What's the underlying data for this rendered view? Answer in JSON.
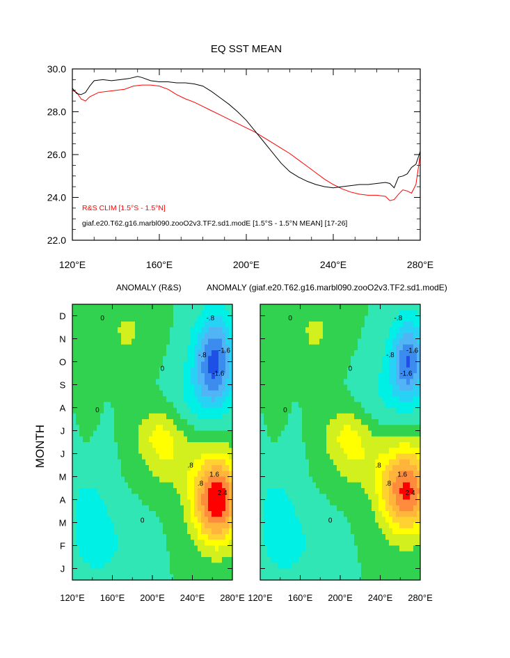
{
  "colors": {
    "obs_line": "#ff0000",
    "model_line": "#000000",
    "palette": [
      "#0010c8",
      "#1e50e6",
      "#3c8cf0",
      "#50b4f5",
      "#28d2f5",
      "#00f0e6",
      "#30e6b4",
      "#30d250",
      "#7ddc28",
      "#d2f01e",
      "#ffff00",
      "#ffd232",
      "#ffb43c",
      "#ff8c3c",
      "#ff6432",
      "#ff0000"
    ]
  },
  "chart_data": [
    {
      "type": "line",
      "title": "EQ SST MEAN",
      "xlabel": "",
      "ylabel": "",
      "xlim": [
        120,
        280
      ],
      "ylim": [
        22,
        30
      ],
      "x_ticks": [
        120,
        160,
        200,
        240,
        280
      ],
      "x_tick_labels": [
        "120°E",
        "160°E",
        "200°E",
        "240°E",
        "280°E"
      ],
      "y_ticks": [
        22,
        24,
        26,
        28,
        30
      ],
      "y_tick_labels": [
        "22.0",
        "24.0",
        "26.0",
        "28.0",
        "30.0"
      ],
      "legend": [
        {
          "label": "R&S CLIM [1.5°S - 1.5°N]",
          "color": "#ff0000"
        },
        {
          "label": "giaf.e20.T62.g16.marbl090.zooO2v3.TF2.sd1.modE [1.5°S - 1.5°N MEAN] [17-26]",
          "color": "#000000"
        }
      ],
      "legend_position": "bottom-left",
      "series": [
        {
          "name": "R&S CLIM [1.5°S - 1.5°N]",
          "color": "#ff0000",
          "points": [
            [
              120,
              29.0
            ],
            [
              122,
              28.9
            ],
            [
              124,
              28.6
            ],
            [
              126,
              28.5
            ],
            [
              128,
              28.7
            ],
            [
              132,
              28.9
            ],
            [
              136,
              28.95
            ],
            [
              140,
              29.0
            ],
            [
              144,
              29.05
            ],
            [
              148,
              29.2
            ],
            [
              152,
              29.25
            ],
            [
              156,
              29.25
            ],
            [
              160,
              29.2
            ],
            [
              164,
              29.05
            ],
            [
              168,
              28.8
            ],
            [
              172,
              28.6
            ],
            [
              176,
              28.45
            ],
            [
              180,
              28.25
            ],
            [
              184,
              28.05
            ],
            [
              188,
              27.85
            ],
            [
              192,
              27.65
            ],
            [
              196,
              27.45
            ],
            [
              200,
              27.25
            ],
            [
              204,
              27.05
            ],
            [
              208,
              26.8
            ],
            [
              212,
              26.55
            ],
            [
              216,
              26.3
            ],
            [
              220,
              26.05
            ],
            [
              224,
              25.75
            ],
            [
              228,
              25.45
            ],
            [
              232,
              25.15
            ],
            [
              236,
              24.85
            ],
            [
              240,
              24.6
            ],
            [
              244,
              24.4
            ],
            [
              248,
              24.25
            ],
            [
              252,
              24.15
            ],
            [
              256,
              24.1
            ],
            [
              260,
              24.1
            ],
            [
              264,
              24.05
            ],
            [
              266,
              23.85
            ],
            [
              268,
              23.9
            ],
            [
              270,
              24.15
            ],
            [
              272,
              24.35
            ],
            [
              274,
              24.3
            ],
            [
              276,
              24.2
            ],
            [
              278,
              24.6
            ],
            [
              279,
              25.3
            ],
            [
              280,
              26.0
            ]
          ]
        },
        {
          "name": "giaf.e20.T62.g16.marbl090.zooO2v3.TF2.sd1.modE [1.5°S - 1.5°N MEAN] [17-26]",
          "color": "#000000",
          "points": [
            [
              120,
              29.1
            ],
            [
              122,
              28.85
            ],
            [
              124,
              28.8
            ],
            [
              126,
              28.9
            ],
            [
              128,
              29.2
            ],
            [
              130,
              29.45
            ],
            [
              134,
              29.5
            ],
            [
              138,
              29.45
            ],
            [
              142,
              29.5
            ],
            [
              146,
              29.55
            ],
            [
              150,
              29.65
            ],
            [
              152,
              29.6
            ],
            [
              156,
              29.45
            ],
            [
              160,
              29.4
            ],
            [
              164,
              29.4
            ],
            [
              168,
              29.35
            ],
            [
              172,
              29.35
            ],
            [
              176,
              29.3
            ],
            [
              180,
              29.2
            ],
            [
              184,
              28.95
            ],
            [
              188,
              28.65
            ],
            [
              192,
              28.35
            ],
            [
              196,
              28.0
            ],
            [
              200,
              27.6
            ],
            [
              204,
              27.1
            ],
            [
              208,
              26.6
            ],
            [
              212,
              26.1
            ],
            [
              216,
              25.6
            ],
            [
              220,
              25.2
            ],
            [
              224,
              24.95
            ],
            [
              228,
              24.75
            ],
            [
              232,
              24.6
            ],
            [
              236,
              24.5
            ],
            [
              240,
              24.45
            ],
            [
              244,
              24.5
            ],
            [
              248,
              24.55
            ],
            [
              252,
              24.6
            ],
            [
              256,
              24.6
            ],
            [
              260,
              24.65
            ],
            [
              264,
              24.7
            ],
            [
              266,
              24.65
            ],
            [
              268,
              24.45
            ],
            [
              270,
              24.95
            ],
            [
              272,
              25.0
            ],
            [
              274,
              25.1
            ],
            [
              276,
              25.4
            ],
            [
              278,
              25.55
            ],
            [
              280,
              26.15
            ]
          ]
        }
      ]
    },
    {
      "type": "heatmap",
      "title": "ANOMALY (R&S)",
      "ylabel": "MONTH",
      "xlim": [
        120,
        280
      ],
      "x_ticks": [
        120,
        160,
        200,
        240,
        280
      ],
      "x_tick_labels": [
        "120°E",
        "160°E",
        "200°E",
        "240°E",
        "280°E"
      ],
      "y_tick_labels": [
        "J",
        "F",
        "M",
        "A",
        "M",
        "J",
        "J",
        "A",
        "S",
        "O",
        "N",
        "D"
      ],
      "anomaly_centers": [
        {
          "lon": 264,
          "month": 3,
          "value": 2.6
        },
        {
          "lon": 262,
          "month": 9,
          "value": -2.0
        }
      ],
      "contour_labels": [
        "0",
        ".8",
        "1.6",
        "2.4",
        "-.8",
        "-1.6"
      ]
    },
    {
      "type": "heatmap",
      "title": "ANOMALY (giaf.e20.T62.g16.marbl090.zooO2v3.TF2.sd1.modE)",
      "xlim": [
        120,
        280
      ],
      "x_ticks": [
        120,
        160,
        200,
        240,
        280
      ],
      "x_tick_labels": [
        "120°E",
        "160°E",
        "200°E",
        "240°E",
        "280°E"
      ],
      "y_tick_labels": [
        "J",
        "F",
        "M",
        "A",
        "M",
        "J",
        "J",
        "A",
        "S",
        "O",
        "N",
        "D"
      ],
      "anomaly_centers": [
        {
          "lon": 266,
          "month": 3.5,
          "value": 2.4
        },
        {
          "lon": 266,
          "month": 9.2,
          "value": -1.9
        }
      ],
      "contour_labels": [
        "0",
        ".8",
        "1.6",
        "2.4",
        "-.8",
        "-1.6"
      ]
    }
  ]
}
